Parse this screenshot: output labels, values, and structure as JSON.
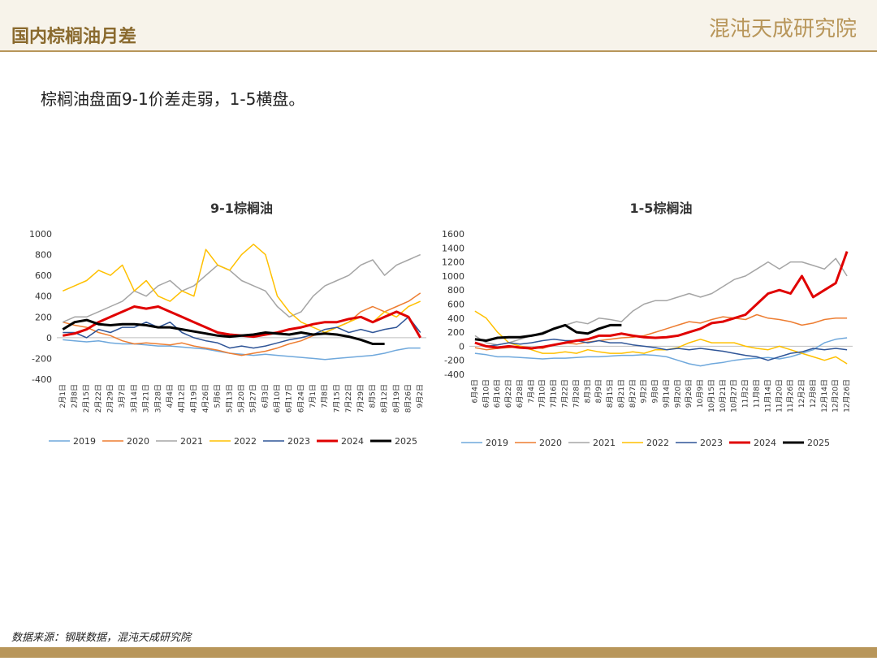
{
  "header": {
    "title": "国内棕榈油月差",
    "logo": "混沌天成研究院"
  },
  "subtitle": "棕榈油盘面9-1价差走弱，1-5横盘。",
  "source": "数据来源：钢联数据，混沌天成研究院",
  "chart_data": [
    {
      "type": "line",
      "title": "9-1棕榈油",
      "categories": [
        "2月1日",
        "2月8日",
        "2月15日",
        "2月22日",
        "2月29日",
        "3月7日",
        "3月14日",
        "3月21日",
        "3月28日",
        "4月4日",
        "4月12日",
        "4月19日",
        "4月26日",
        "5月6日",
        "5月13日",
        "5月20日",
        "5月27日",
        "6月3日",
        "6月10日",
        "6月17日",
        "6月24日",
        "7月1日",
        "7月8日",
        "7月15日",
        "7月22日",
        "7月29日",
        "8月5日",
        "8月12日",
        "8月19日",
        "8月26日",
        "9月2日"
      ],
      "ylim": [
        -400,
        1000
      ],
      "yticks": [
        -400,
        -200,
        0,
        200,
        400,
        600,
        800,
        1000
      ],
      "series": [
        {
          "name": "2019",
          "color": "#6fa8dc",
          "width": 1.5,
          "values": [
            -20,
            -30,
            -40,
            -30,
            -50,
            -60,
            -60,
            -70,
            -80,
            -80,
            -90,
            -100,
            -110,
            -130,
            -150,
            -160,
            -170,
            -160,
            -170,
            -180,
            -190,
            -200,
            -210,
            -200,
            -190,
            -180,
            -170,
            -150,
            -120,
            -100,
            -100
          ]
        },
        {
          "name": "2020",
          "color": "#ed7d31",
          "width": 1.5,
          "values": [
            150,
            120,
            100,
            50,
            20,
            -30,
            -60,
            -50,
            -60,
            -70,
            -50,
            -80,
            -100,
            -120,
            -150,
            -170,
            -150,
            -130,
            -100,
            -60,
            -30,
            20,
            50,
            100,
            150,
            250,
            300,
            250,
            300,
            350,
            430
          ]
        },
        {
          "name": "2021",
          "color": "#a5a5a5",
          "width": 1.5,
          "values": [
            150,
            200,
            200,
            250,
            300,
            350,
            450,
            400,
            500,
            550,
            450,
            500,
            600,
            700,
            650,
            550,
            500,
            450,
            300,
            200,
            250,
            400,
            500,
            550,
            600,
            700,
            750,
            600,
            700,
            750,
            800
          ]
        },
        {
          "name": "2022",
          "color": "#ffc000",
          "width": 1.5,
          "values": [
            450,
            500,
            550,
            650,
            600,
            700,
            450,
            550,
            400,
            350,
            450,
            400,
            850,
            700,
            650,
            800,
            900,
            800,
            400,
            250,
            150,
            100,
            50,
            100,
            150,
            200,
            150,
            250,
            200,
            300,
            350
          ]
        },
        {
          "name": "2023",
          "color": "#2f5597",
          "width": 1.5,
          "values": [
            50,
            50,
            0,
            80,
            50,
            100,
            100,
            150,
            100,
            150,
            50,
            0,
            -30,
            -50,
            -100,
            -80,
            -100,
            -80,
            -50,
            -20,
            0,
            30,
            80,
            100,
            50,
            80,
            50,
            80,
            100,
            200,
            50
          ]
        },
        {
          "name": "2024",
          "color": "#e00000",
          "width": 3,
          "values": [
            20,
            40,
            80,
            150,
            200,
            250,
            300,
            280,
            300,
            250,
            200,
            150,
            100,
            50,
            30,
            20,
            10,
            30,
            50,
            80,
            100,
            130,
            150,
            150,
            180,
            200,
            150,
            200,
            250,
            200,
            0
          ]
        },
        {
          "name": "2025",
          "color": "#000000",
          "width": 3,
          "values": [
            80,
            150,
            170,
            130,
            120,
            130,
            130,
            120,
            100,
            100,
            80,
            60,
            40,
            20,
            10,
            20,
            30,
            50,
            40,
            30,
            50,
            30,
            40,
            30,
            10,
            -20,
            -60,
            -60,
            null,
            null,
            null
          ]
        }
      ]
    },
    {
      "type": "line",
      "title": "1-5棕榈油",
      "categories": [
        "6月4日",
        "6月10日",
        "6月16日",
        "6月22日",
        "6月28日",
        "7月4日",
        "7月10日",
        "7月16日",
        "7月22日",
        "7月28日",
        "8月3日",
        "8月9日",
        "8月15日",
        "8月21日",
        "8月27日",
        "9月2日",
        "9月8日",
        "9月14日",
        "9月20日",
        "9月26日",
        "10月9日",
        "10月15日",
        "10月21日",
        "10月27日",
        "11月2日",
        "11月8日",
        "11月14日",
        "11月20日",
        "11月26日",
        "12月2日",
        "12月8日",
        "12月14日",
        "12月20日",
        "12月26日"
      ],
      "ylim": [
        -400,
        1600
      ],
      "yticks": [
        -400,
        -200,
        0,
        200,
        400,
        600,
        800,
        1000,
        1200,
        1400,
        1600
      ],
      "series": [
        {
          "name": "2019",
          "color": "#6fa8dc",
          "width": 1.5,
          "values": [
            -100,
            -120,
            -150,
            -150,
            -160,
            -170,
            -180,
            -170,
            -170,
            -160,
            -150,
            -150,
            -140,
            -130,
            -130,
            -120,
            -130,
            -150,
            -200,
            -250,
            -280,
            -250,
            -230,
            -200,
            -180,
            -170,
            -160,
            -180,
            -150,
            -100,
            -50,
            50,
            100,
            120
          ]
        },
        {
          "name": "2020",
          "color": "#ed7d31",
          "width": 1.5,
          "values": [
            -20,
            -50,
            -30,
            -20,
            0,
            -20,
            -30,
            20,
            50,
            30,
            60,
            80,
            100,
            120,
            130,
            150,
            200,
            250,
            300,
            350,
            330,
            380,
            420,
            400,
            380,
            450,
            400,
            380,
            350,
            300,
            330,
            380,
            400,
            400
          ]
        },
        {
          "name": "2021",
          "color": "#a5a5a5",
          "width": 1.5,
          "values": [
            150,
            50,
            20,
            50,
            100,
            150,
            200,
            250,
            300,
            350,
            320,
            400,
            380,
            350,
            500,
            600,
            650,
            650,
            700,
            750,
            700,
            750,
            850,
            950,
            1000,
            1100,
            1200,
            1100,
            1200,
            1200,
            1150,
            1100,
            1250,
            1000
          ]
        },
        {
          "name": "2022",
          "color": "#ffc000",
          "width": 1.5,
          "values": [
            500,
            400,
            200,
            50,
            0,
            -50,
            -100,
            -100,
            -80,
            -100,
            -50,
            -80,
            -100,
            -100,
            -80,
            -100,
            -50,
            -50,
            -20,
            50,
            100,
            50,
            50,
            50,
            0,
            -30,
            -50,
            0,
            -50,
            -100,
            -150,
            -200,
            -150,
            -250
          ]
        },
        {
          "name": "2023",
          "color": "#2f5597",
          "width": 1.5,
          "values": [
            50,
            0,
            20,
            50,
            30,
            50,
            80,
            100,
            80,
            80,
            50,
            80,
            50,
            50,
            20,
            0,
            -20,
            -50,
            -30,
            -50,
            -30,
            -50,
            -70,
            -100,
            -130,
            -150,
            -200,
            -150,
            -100,
            -80,
            -30,
            -50,
            -30,
            -50
          ]
        },
        {
          "name": "2024",
          "color": "#e00000",
          "width": 3,
          "values": [
            50,
            0,
            -20,
            0,
            -20,
            -30,
            -10,
            20,
            50,
            80,
            100,
            150,
            150,
            180,
            150,
            130,
            120,
            130,
            150,
            200,
            250,
            330,
            350,
            400,
            450,
            600,
            750,
            800,
            750,
            1000,
            700,
            800,
            900,
            1350
          ]
        },
        {
          "name": "2025",
          "color": "#000000",
          "width": 3,
          "values": [
            100,
            80,
            120,
            130,
            130,
            150,
            180,
            250,
            300,
            200,
            180,
            250,
            300,
            300,
            null,
            null,
            null,
            null,
            null,
            null,
            null,
            null,
            null,
            null,
            null,
            null,
            null,
            null,
            null,
            null,
            null,
            null,
            null,
            null
          ]
        }
      ]
    }
  ]
}
